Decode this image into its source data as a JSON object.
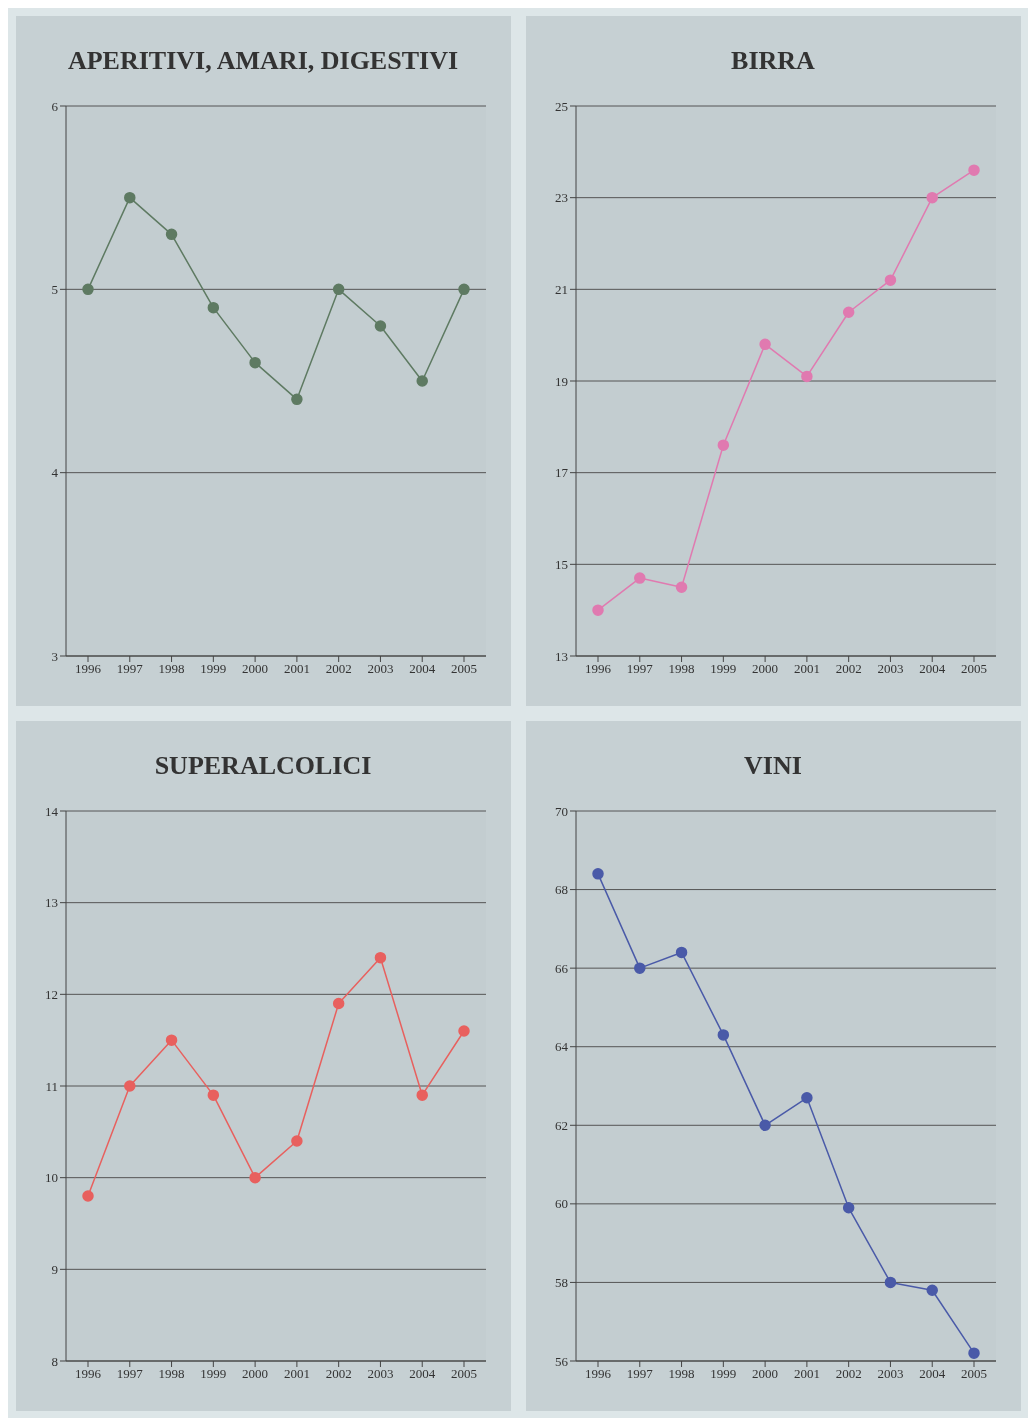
{
  "chart_data": [
    {
      "type": "line",
      "title": "APERITIVI, AMARI, DIGESTIVI",
      "categories": [
        "1996",
        "1997",
        "1998",
        "1999",
        "2000",
        "2001",
        "2002",
        "2003",
        "2004",
        "2005"
      ],
      "series": [
        {
          "color": "#5e7a62",
          "values": [
            5.0,
            5.5,
            5.3,
            4.9,
            4.6,
            4.4,
            5.0,
            4.8,
            4.5,
            5.0
          ]
        }
      ],
      "ylim": [
        3,
        6
      ],
      "yticks": [
        3,
        4,
        5,
        6
      ],
      "grid": "y",
      "marker": "circle"
    },
    {
      "type": "line",
      "title": "BIRRA",
      "categories": [
        "1996",
        "1997",
        "1998",
        "1999",
        "2000",
        "2001",
        "2002",
        "2003",
        "2004",
        "2005"
      ],
      "series": [
        {
          "color": "#e07ab0",
          "values": [
            14.0,
            14.7,
            14.5,
            17.6,
            19.8,
            19.1,
            20.5,
            21.2,
            23.0,
            23.6
          ]
        }
      ],
      "ylim": [
        13,
        25
      ],
      "yticks": [
        13,
        15,
        17,
        19,
        21,
        23,
        25
      ],
      "grid": "y",
      "marker": "circle"
    },
    {
      "type": "line",
      "title": "SUPERALCOLICI",
      "categories": [
        "1996",
        "1997",
        "1998",
        "1999",
        "2000",
        "2001",
        "2002",
        "2003",
        "2004",
        "2005"
      ],
      "series": [
        {
          "color": "#e8605e",
          "values": [
            9.8,
            11.0,
            11.5,
            10.9,
            10.0,
            10.4,
            11.9,
            12.4,
            10.9,
            11.6
          ]
        }
      ],
      "ylim": [
        8,
        14
      ],
      "yticks": [
        8,
        9,
        10,
        11,
        12,
        13,
        14
      ],
      "grid": "y",
      "marker": "circle"
    },
    {
      "type": "line",
      "title": "VINI",
      "categories": [
        "1996",
        "1997",
        "1998",
        "1999",
        "2000",
        "2001",
        "2002",
        "2003",
        "2004",
        "2005"
      ],
      "series": [
        {
          "color": "#4a5aa8",
          "values": [
            68.4,
            66.0,
            66.4,
            64.3,
            62.0,
            62.7,
            59.9,
            58.0,
            57.8,
            56.2
          ]
        }
      ],
      "ylim": [
        56,
        70
      ],
      "yticks": [
        56,
        58,
        60,
        62,
        64,
        66,
        68,
        70
      ],
      "grid": "y",
      "marker": "circle"
    }
  ]
}
